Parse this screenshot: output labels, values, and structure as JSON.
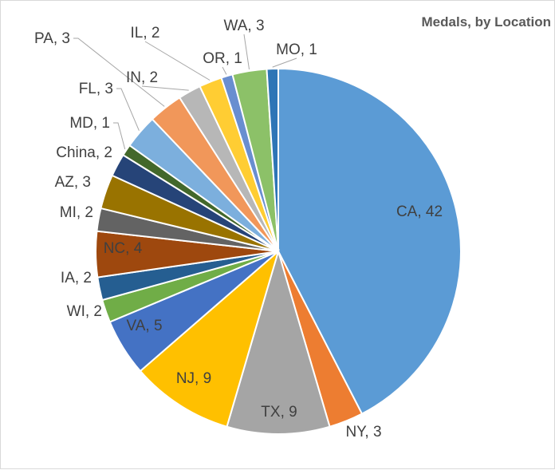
{
  "chart_data": {
    "type": "pie",
    "title": "Medals, by Location",
    "slices": [
      {
        "label": "CA, 42",
        "name": "CA",
        "value": 42,
        "color": "#5B9BD5"
      },
      {
        "label": "NY, 3",
        "name": "NY",
        "value": 3,
        "color": "#ED7D31"
      },
      {
        "label": "TX, 9",
        "name": "TX",
        "value": 9,
        "color": "#A5A5A5"
      },
      {
        "label": "NJ, 9",
        "name": "NJ",
        "value": 9,
        "color": "#FFC000"
      },
      {
        "label": "VA, 5",
        "name": "VA",
        "value": 5,
        "color": "#4472C4"
      },
      {
        "label": "WI, 2",
        "name": "WI",
        "value": 2,
        "color": "#70AD47"
      },
      {
        "label": "IA, 2",
        "name": "IA",
        "value": 2,
        "color": "#255E91"
      },
      {
        "label": "NC, 4",
        "name": "NC",
        "value": 4,
        "color": "#9E480E"
      },
      {
        "label": "MI, 2",
        "name": "MI",
        "value": 2,
        "color": "#636363"
      },
      {
        "label": "AZ, 3",
        "name": "AZ",
        "value": 3,
        "color": "#997300"
      },
      {
        "label": "China, 2",
        "name": "China",
        "value": 2,
        "color": "#264478"
      },
      {
        "label": "MD, 1",
        "name": "MD",
        "value": 1,
        "color": "#43682B"
      },
      {
        "label": "FL, 3",
        "name": "FL",
        "value": 3,
        "color": "#7CAFDD"
      },
      {
        "label": "PA, 3",
        "name": "PA",
        "value": 3,
        "color": "#F1975A"
      },
      {
        "label": "IN, 2",
        "name": "IN",
        "value": 2,
        "color": "#B7B7B7"
      },
      {
        "label": "IL, 2",
        "name": "IL",
        "value": 2,
        "color": "#FFCD33"
      },
      {
        "label": "OR, 1",
        "name": "OR",
        "value": 1,
        "color": "#698ED0"
      },
      {
        "label": "WA, 3",
        "name": "WA",
        "value": 3,
        "color": "#8CC168"
      },
      {
        "label": "MO, 1",
        "name": "MO",
        "value": 1,
        "color": "#2E75B6"
      }
    ],
    "start": "12 o'clock",
    "direction": "clockwise",
    "legend": "none"
  }
}
